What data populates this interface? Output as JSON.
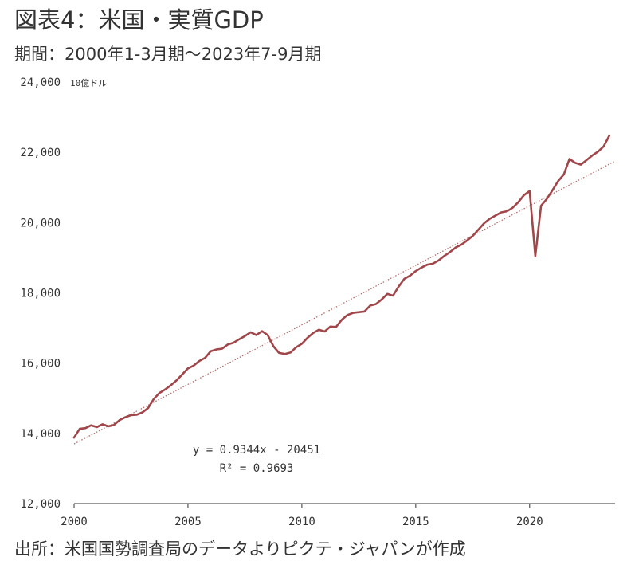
{
  "header": {
    "title": "図表4：米国・実質GDP",
    "subtitle": "期間：2000年1-3月期～2023年7-9月期"
  },
  "footer": {
    "source": "出所：米国国勢調査局のデータよりピクテ・ジャパンが作成"
  },
  "colors": {
    "series": "#a0474b",
    "trend": "#b07070",
    "axis": "#333333"
  },
  "chart_data": {
    "type": "line",
    "title": "図表4：米国・実質GDP",
    "unit_label": "10億ドル",
    "xlabel": "",
    "ylabel": "",
    "xlim": [
      2000,
      2023.75
    ],
    "ylim": [
      12000,
      24000
    ],
    "x_ticks": [
      2000,
      2005,
      2010,
      2015,
      2020
    ],
    "x_tick_labels": [
      "2000",
      "2005",
      "2010",
      "2015",
      "2020"
    ],
    "y_ticks": [
      12000,
      14000,
      16000,
      18000,
      20000,
      22000,
      24000
    ],
    "y_tick_labels": [
      "12,000",
      "14,000",
      "16,000",
      "18,000",
      "20,000",
      "22,000",
      "24,000"
    ],
    "grid": false,
    "legend": "none",
    "series": [
      {
        "x": [
          2000.0,
          2000.25,
          2000.5,
          2000.75,
          2001.0,
          2001.25,
          2001.5,
          2001.75,
          2002.0,
          2002.25,
          2002.5,
          2002.75,
          2003.0,
          2003.25,
          2003.5,
          2003.75,
          2004.0,
          2004.25,
          2004.5,
          2004.75,
          2005.0,
          2005.25,
          2005.5,
          2005.75,
          2006.0,
          2006.25,
          2006.5,
          2006.75,
          2007.0,
          2007.25,
          2007.5,
          2007.75,
          2008.0,
          2008.25,
          2008.5,
          2008.75,
          2009.0,
          2009.25,
          2009.5,
          2009.75,
          2010.0,
          2010.25,
          2010.5,
          2010.75,
          2011.0,
          2011.25,
          2011.5,
          2011.75,
          2012.0,
          2012.25,
          2012.5,
          2012.75,
          2013.0,
          2013.25,
          2013.5,
          2013.75,
          2014.0,
          2014.25,
          2014.5,
          2014.75,
          2015.0,
          2015.25,
          2015.5,
          2015.75,
          2016.0,
          2016.25,
          2016.5,
          2016.75,
          2017.0,
          2017.25,
          2017.5,
          2017.75,
          2018.0,
          2018.25,
          2018.5,
          2018.75,
          2019.0,
          2019.25,
          2019.5,
          2019.75,
          2020.0,
          2020.25,
          2020.5,
          2020.75,
          2021.0,
          2021.25,
          2021.5,
          2021.75,
          2022.0,
          2022.25,
          2022.5,
          2022.75,
          2023.0,
          2023.25,
          2023.5
        ],
        "y": [
          13880,
          14130,
          14150,
          14230,
          14180,
          14260,
          14200,
          14240,
          14380,
          14460,
          14520,
          14530,
          14600,
          14720,
          14980,
          15150,
          15250,
          15370,
          15510,
          15680,
          15850,
          15930,
          16060,
          16150,
          16340,
          16390,
          16410,
          16530,
          16580,
          16680,
          16770,
          16880,
          16800,
          16910,
          16800,
          16480,
          16290,
          16260,
          16300,
          16450,
          16550,
          16720,
          16860,
          16950,
          16900,
          17040,
          17030,
          17230,
          17370,
          17430,
          17450,
          17470,
          17640,
          17680,
          17810,
          17970,
          17920,
          18180,
          18400,
          18490,
          18620,
          18720,
          18800,
          18830,
          18920,
          19050,
          19160,
          19290,
          19370,
          19490,
          19620,
          19800,
          19980,
          20110,
          20200,
          20290,
          20320,
          20420,
          20580,
          20780,
          20900,
          19050,
          20480,
          20670,
          20920,
          21180,
          21370,
          21810,
          21700,
          21650,
          21780,
          21910,
          22020,
          22170,
          22480
        ]
      }
    ],
    "trendline": {
      "slope": 0.9344,
      "intercept": -20451,
      "start": 13700,
      "end": 21750
    },
    "annotations": [
      "y = 0.9344x - 20451",
      "R² = 0.9693"
    ]
  }
}
